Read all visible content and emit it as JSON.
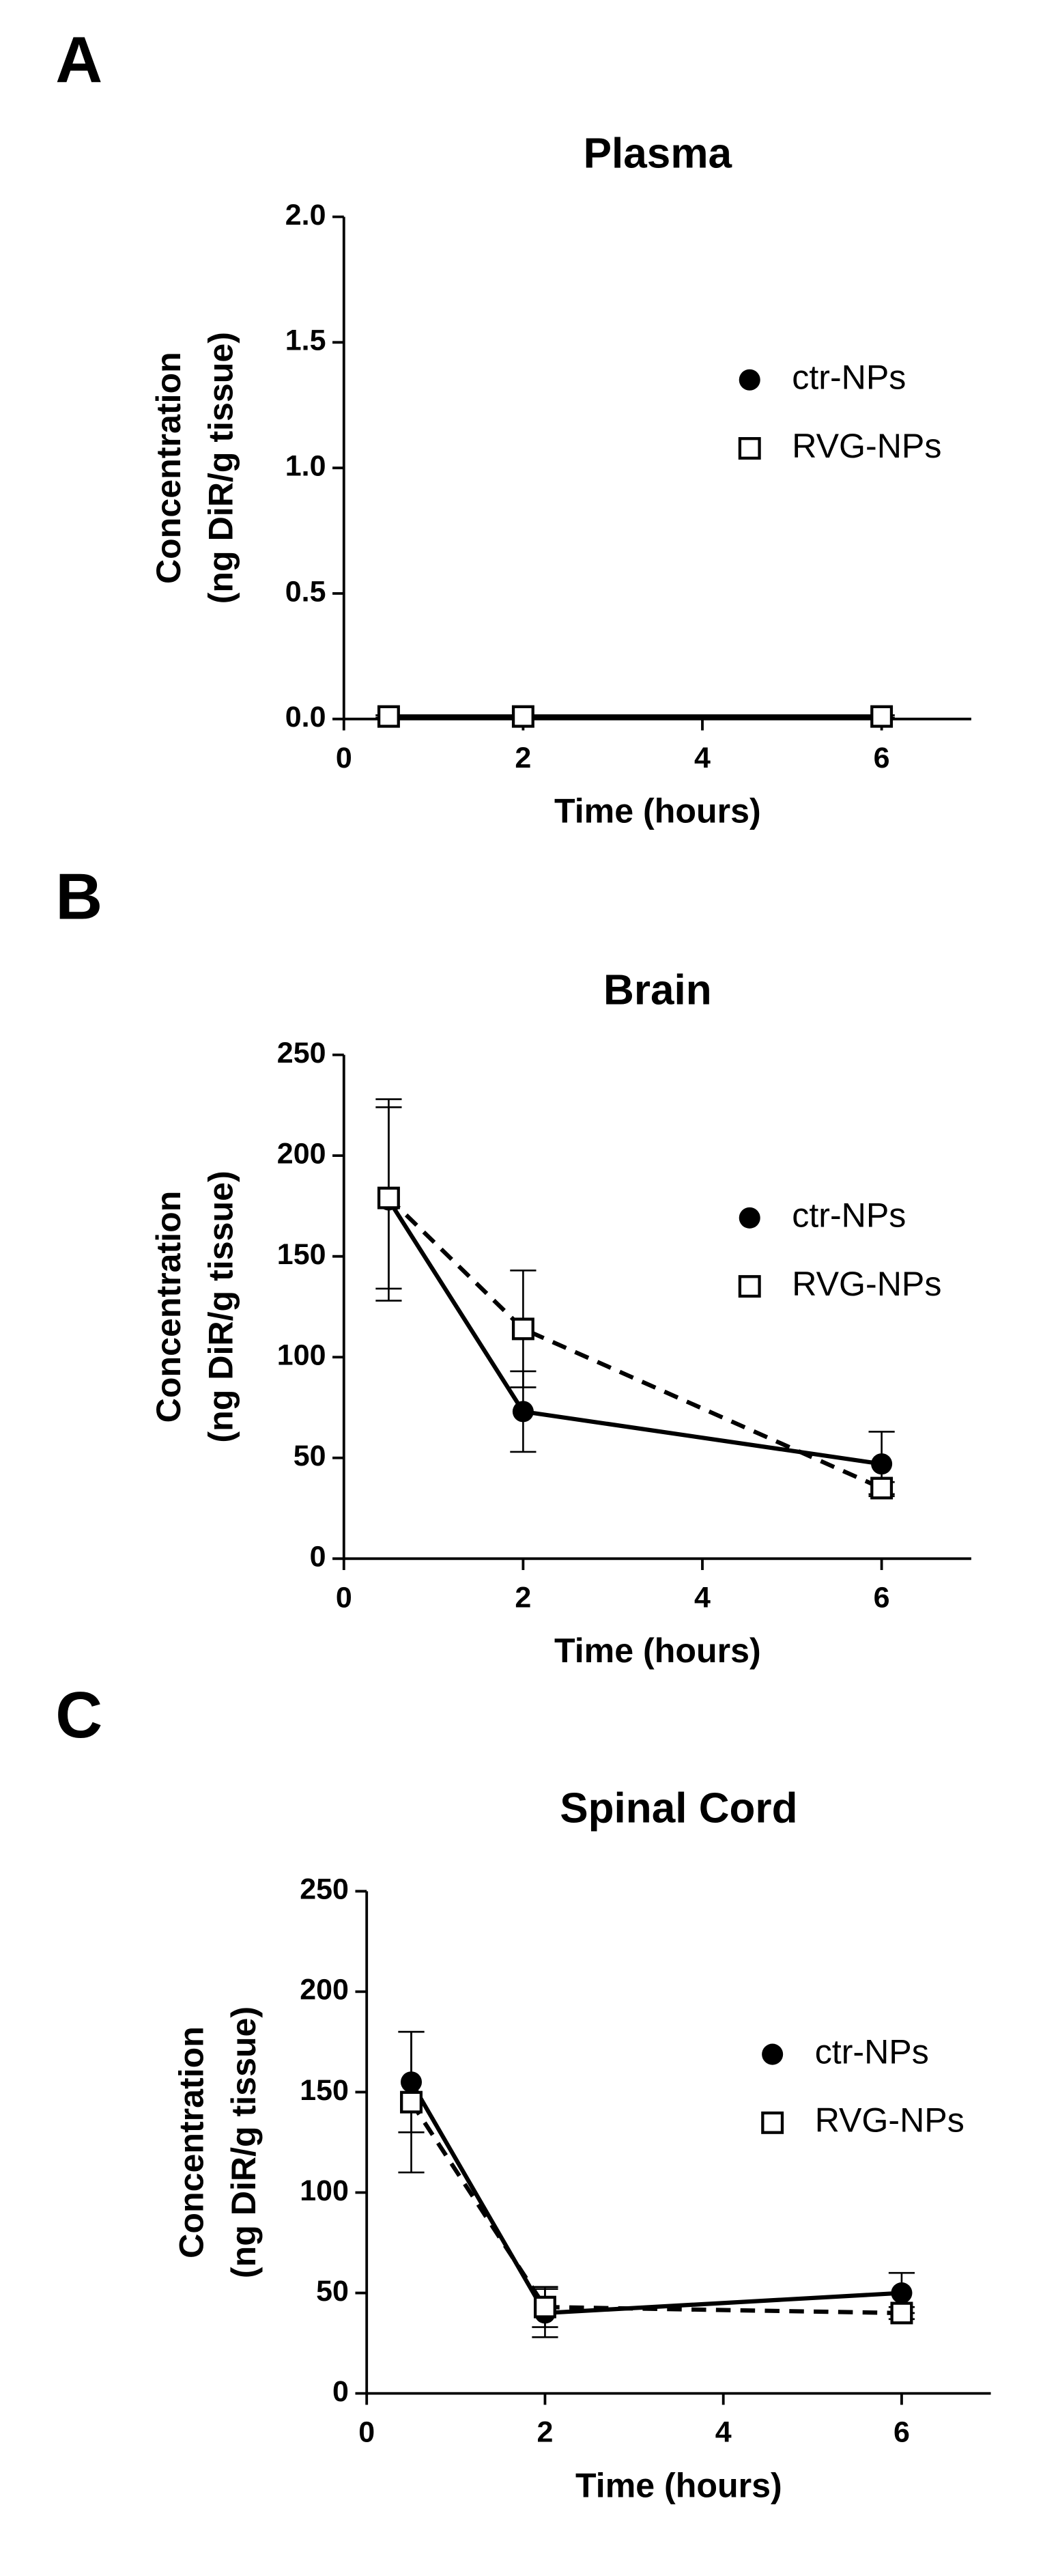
{
  "chart_data": [
    {
      "type": "line",
      "panel": "A",
      "title": "Plasma",
      "xlabel": "Time (hours)",
      "ylabel": [
        "Concentration",
        "(ng DiR/g tissue)"
      ],
      "x": [
        0.5,
        2,
        6
      ],
      "xlim": [
        0,
        7
      ],
      "xticks": [
        0,
        2,
        4,
        6
      ],
      "ylim": [
        0,
        2
      ],
      "yticks": [
        {
          "value": 0,
          "label": "0.0"
        },
        {
          "value": 0.5,
          "label": "0.5"
        },
        {
          "value": 1,
          "label": "1.0"
        },
        {
          "value": 1.5,
          "label": "1.5"
        },
        {
          "value": 2,
          "label": "2.0"
        }
      ],
      "legend": "right",
      "series": [
        {
          "name": "ctr-NPs",
          "color": "#000000",
          "marker": "circle",
          "linestyle": "solid",
          "values": [
            0.01,
            0.01,
            0.01
          ],
          "errors": [
            0.005,
            0.003,
            0.005
          ]
        },
        {
          "name": "RVG-NPs",
          "color": "#000000",
          "marker": "square",
          "linestyle": "dashed",
          "values": [
            0.01,
            0.01,
            0.01
          ],
          "errors": [
            0.005,
            0.003,
            0.005
          ]
        }
      ]
    },
    {
      "type": "line",
      "panel": "B",
      "title": "Brain",
      "xlabel": "Time (hours)",
      "ylabel": [
        "Concentration",
        "(ng DiR/g tissue)"
      ],
      "x": [
        0.5,
        2,
        6
      ],
      "xlim": [
        0,
        7
      ],
      "xticks": [
        0,
        2,
        4,
        6
      ],
      "ylim": [
        0,
        250
      ],
      "yticks": [
        0,
        50,
        100,
        150,
        200,
        250
      ],
      "legend": "right",
      "series": [
        {
          "name": "ctr-NPs",
          "color": "#000000",
          "marker": "circle",
          "linestyle": "solid",
          "values": [
            178,
            73,
            47
          ],
          "errors": [
            50,
            20,
            16
          ]
        },
        {
          "name": "RVG-NPs",
          "color": "#000000",
          "marker": "square",
          "linestyle": "dashed",
          "values": [
            179,
            114,
            35
          ],
          "errors": [
            45,
            29,
            3
          ]
        }
      ]
    },
    {
      "type": "line",
      "panel": "C",
      "title": "Spinal Cord",
      "xlabel": "Time (hours)",
      "ylabel": [
        "Concentration",
        "(ng DiR/g tissue)"
      ],
      "x": [
        0.5,
        2,
        6
      ],
      "xlim": [
        0,
        7
      ],
      "xticks": [
        0,
        2,
        4,
        6
      ],
      "ylim": [
        0,
        250
      ],
      "yticks": [
        0,
        50,
        100,
        150,
        200,
        250
      ],
      "legend": "right",
      "series": [
        {
          "name": "ctr-NPs",
          "color": "#000000",
          "marker": "circle",
          "linestyle": "solid",
          "values": [
            155,
            40,
            50
          ],
          "errors": [
            25,
            12,
            10
          ]
        },
        {
          "name": "RVG-NPs",
          "color": "#000000",
          "marker": "square",
          "linestyle": "dashed",
          "values": [
            145,
            43,
            40
          ],
          "errors": [
            35,
            10,
            3
          ]
        }
      ]
    }
  ]
}
